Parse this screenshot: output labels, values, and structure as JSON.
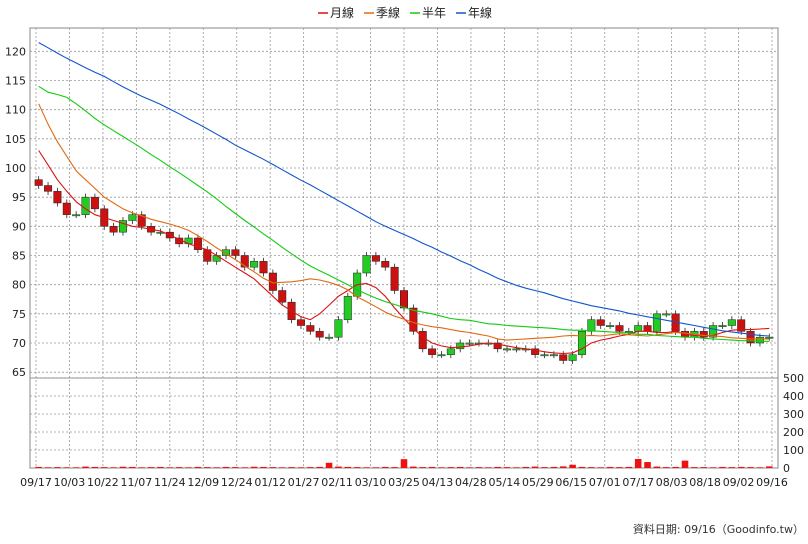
{
  "chart_data": {
    "type": "candlestick",
    "legend": {
      "placement": "top-center",
      "items": [
        {
          "label": "月線",
          "color": "#dd1111"
        },
        {
          "label": "季線",
          "color": "#e06a10"
        },
        {
          "label": "半年",
          "color": "#11cc11"
        },
        {
          "label": "年線",
          "color": "#1155cc"
        }
      ]
    },
    "price_axis": {
      "min": 64,
      "max": 124,
      "ticks": [
        120,
        115,
        110,
        105,
        100,
        95,
        90,
        85,
        80,
        75,
        70,
        65
      ],
      "side": "left"
    },
    "volume_axis": {
      "min": 0,
      "max": 500,
      "ticks": [
        500,
        400,
        300,
        200,
        100,
        0
      ],
      "side": "right"
    },
    "x_tick_labels": [
      "09/17",
      "10/03",
      "10/22",
      "11/07",
      "11/24",
      "12/09",
      "12/24",
      "01/12",
      "01/27",
      "02/11",
      "03/10",
      "03/25",
      "04/13",
      "04/28",
      "05/14",
      "05/29",
      "06/15",
      "07/01",
      "07/17",
      "08/03",
      "08/18",
      "09/02",
      "09/16"
    ],
    "grid": true,
    "colors": {
      "up": "#22cc22",
      "down": "#cc1111",
      "volume": "#ee1111",
      "grid": "#999999"
    },
    "ma_month": [
      103,
      100.5,
      98,
      96,
      94.2,
      93,
      92,
      91.5,
      91,
      90.5,
      90,
      89.8,
      89.5,
      89.2,
      88.5,
      87.8,
      87,
      86.5,
      86,
      85,
      84,
      83,
      82,
      81,
      79.5,
      78,
      76.5,
      75.5,
      74.5,
      74,
      75,
      76.5,
      78,
      79,
      80,
      80.2,
      79.5,
      78,
      76,
      74.2,
      72.5,
      71,
      70,
      69.5,
      69.2,
      69.3,
      69.5,
      69.8,
      70,
      69.8,
      69.5,
      69.2,
      69,
      68.8,
      68.5,
      68.3,
      68.2,
      68.3,
      69,
      70,
      70.5,
      70.8,
      71.2,
      71.5,
      72,
      72,
      71.8,
      71.8,
      72,
      71.5,
      71.3,
      71.2,
      71.3,
      71.8,
      72.2,
      72.3,
      72.3,
      72.4,
      72.5
    ],
    "ma_quarter": [
      111,
      107.5,
      104.5,
      102,
      99.5,
      98,
      96.5,
      95,
      94,
      93,
      92.3,
      91.8,
      91.2,
      90.8,
      90.4,
      89.9,
      89.3,
      88.4,
      87.4,
      86.3,
      85.3,
      84.3,
      83.2,
      82.2,
      81.1,
      80.3,
      80.4,
      80.5,
      80.7,
      81,
      80.8,
      80.4,
      79.9,
      79.1,
      77.9,
      77.1,
      76.2,
      75.3,
      74.6,
      74.1,
      73.5,
      73.1,
      72.8,
      72.6,
      72.3,
      72,
      71.8,
      71.5,
      71.2,
      70.7,
      70.5,
      70.6,
      70.7,
      70.8,
      70.9,
      71,
      71.2,
      71.3,
      71.2,
      71.3,
      71.2,
      71.4,
      71.6,
      71.4,
      71.3,
      71.2,
      71.4,
      71.6,
      71.8,
      71.7,
      71.5,
      71.3,
      71.2,
      71.1,
      70.9,
      70.8,
      70.7,
      70.7,
      70.7
    ],
    "ma_half": [
      114,
      113,
      112.6,
      112.1,
      111,
      109.8,
      108.5,
      107.4,
      106.4,
      105.4,
      104.4,
      103.4,
      102.3,
      101.3,
      100.2,
      99.2,
      98.1,
      97,
      95.9,
      94.7,
      93.4,
      92.2,
      91,
      89.9,
      88.7,
      87.6,
      86.4,
      85.3,
      84.2,
      83.2,
      82.4,
      81.6,
      80.8,
      80,
      79.1,
      78.4,
      77.7,
      77.1,
      76.6,
      76.1,
      75.6,
      75.3,
      75,
      74.6,
      74.2,
      74,
      73.9,
      73.6,
      73.3,
      73.2,
      73,
      72.9,
      72.8,
      72.7,
      72.6,
      72.5,
      72.3,
      72.2,
      72.2,
      72.1,
      72,
      71.9,
      71.8,
      71.7,
      71.5,
      71.5,
      71.3,
      71.2,
      71.1,
      71,
      71,
      70.8,
      70.7,
      70.6,
      70.5,
      70.4,
      70.4,
      70.3,
      70.3
    ],
    "ma_year": [
      121.5,
      120.6,
      119.7,
      118.8,
      118,
      117.2,
      116.4,
      115.7,
      114.8,
      113.9,
      113.1,
      112.3,
      111.6,
      110.9,
      110.1,
      109.3,
      108.4,
      107.6,
      106.7,
      105.8,
      104.9,
      103.9,
      103.1,
      102.3,
      101.5,
      100.6,
      99.7,
      98.8,
      97.9,
      97.1,
      96.2,
      95.3,
      94.4,
      93.5,
      92.6,
      91.7,
      90.8,
      90,
      89.3,
      88.6,
      87.9,
      87.1,
      86.4,
      85.6,
      84.9,
      84.1,
      83.4,
      82.6,
      81.9,
      81.1,
      80.5,
      79.9,
      79.4,
      79,
      78.6,
      78.1,
      77.6,
      77.2,
      76.8,
      76.4,
      76.1,
      75.8,
      75.5,
      75.1,
      74.8,
      74.5,
      74.2,
      73.9,
      73.6,
      73.3,
      73,
      72.7,
      72.4,
      72.1,
      71.9,
      71.7,
      71.5,
      71.3,
      71.2
    ],
    "candles_close": [
      97,
      96,
      94,
      92,
      92,
      95,
      93,
      90,
      89,
      91,
      92,
      90,
      89,
      89,
      88,
      87,
      88,
      86,
      84,
      85,
      86,
      85,
      83,
      84,
      82,
      79,
      77,
      74,
      73,
      72,
      71,
      71,
      74,
      78,
      82,
      85,
      84,
      83,
      79,
      76,
      72,
      69,
      68,
      68,
      69,
      70,
      70,
      70,
      70,
      69,
      69,
      69,
      69,
      68,
      68,
      68,
      67,
      68,
      72,
      74,
      73,
      73,
      72,
      72,
      73,
      72,
      75,
      75,
      72,
      71,
      72,
      71,
      73,
      73,
      74,
      72,
      70,
      71,
      71
    ],
    "volume": [
      6,
      4,
      5,
      4,
      4,
      8,
      6,
      5,
      4,
      7,
      6,
      4,
      5,
      6,
      4,
      5,
      4,
      6,
      5,
      4,
      6,
      5,
      4,
      7,
      6,
      5,
      4,
      5,
      4,
      5,
      6,
      29,
      8,
      6,
      5,
      4,
      4,
      6,
      5,
      49,
      8,
      5,
      6,
      4,
      5,
      6,
      4,
      5,
      4,
      6,
      5,
      4,
      6,
      8,
      5,
      6,
      9,
      18,
      6,
      5,
      4,
      6,
      5,
      6,
      50,
      33,
      8,
      5,
      6,
      41,
      5,
      5,
      4,
      6,
      5,
      6,
      5,
      4,
      9
    ]
  },
  "source_note": "資料日期: 09/16（Goodinfo.tw）"
}
